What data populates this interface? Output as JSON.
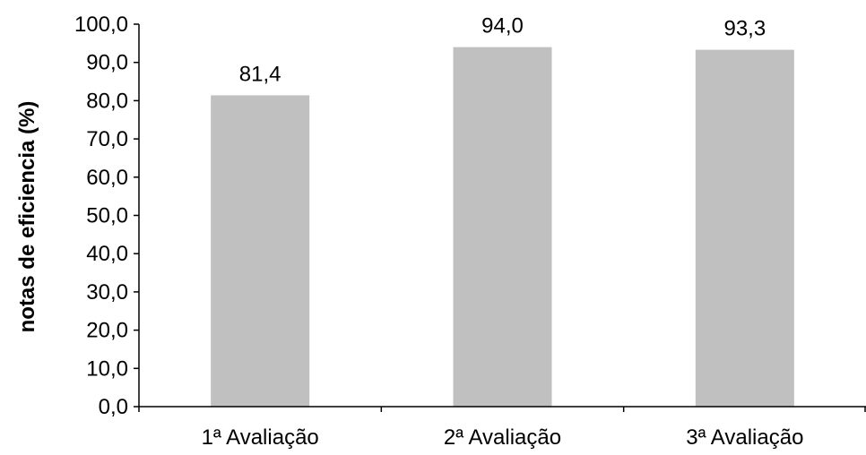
{
  "chart_data": {
    "type": "bar",
    "title": "",
    "xlabel": "",
    "ylabel": "notas de eficiencia (%)",
    "categories": [
      "1ª Avaliação",
      "2ª Avaliação",
      "3ª Avaliação"
    ],
    "values": [
      81.4,
      94.0,
      93.3
    ],
    "value_labels": [
      "81,4",
      "94,0",
      "93,3"
    ],
    "ylim": [
      0,
      100
    ],
    "yticks": [
      0,
      10,
      20,
      30,
      40,
      50,
      60,
      70,
      80,
      90,
      100
    ],
    "ytick_labels": [
      "0,0",
      "10,0",
      "20,0",
      "30,0",
      "40,0",
      "50,0",
      "60,0",
      "70,0",
      "80,0",
      "90,0",
      "100,0"
    ],
    "grid": false,
    "legend": "none",
    "bar_color": "#c0c0c0",
    "axis_color": "#000000"
  }
}
